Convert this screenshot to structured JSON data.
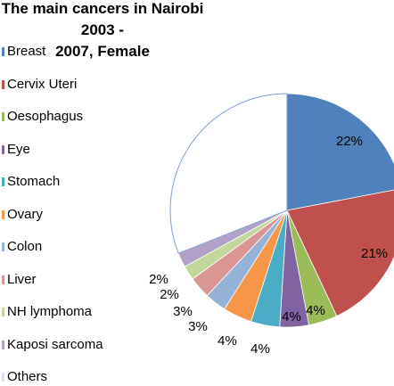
{
  "chart_data": {
    "type": "pie",
    "title": "The main cancers in Nairobi 2003 - 2007, Female",
    "title_lines": [
      "The main cancers in Nairobi 2003 -",
      "2007, Female"
    ],
    "legend_position": "left",
    "slices": [
      {
        "label": "Breast",
        "value": 22,
        "display": "22%",
        "color": "#4f81bd"
      },
      {
        "label": "Cervix Uteri",
        "value": 21,
        "display": "21%",
        "color": "#c0504d"
      },
      {
        "label": "Oesophagus",
        "value": 4,
        "display": "4%",
        "color": "#9bbb59"
      },
      {
        "label": "Eye",
        "value": 4,
        "display": "4%",
        "color": "#8064a2"
      },
      {
        "label": "Stomach",
        "value": 4,
        "display": "4%",
        "color": "#4bacc6"
      },
      {
        "label": "Ovary",
        "value": 4,
        "display": "4%",
        "color": "#f79646"
      },
      {
        "label": "Colon",
        "value": 3,
        "display": "3%",
        "color": "#95b3d7"
      },
      {
        "label": "Liver",
        "value": 3,
        "display": "3%",
        "color": "#da9694"
      },
      {
        "label": "NH lymphoma",
        "value": 2,
        "display": "2%",
        "color": "#c3d69b"
      },
      {
        "label": "Kaposi sarcoma",
        "value": 2,
        "display": "2%",
        "color": "#b2a1c7"
      },
      {
        "label": "Others",
        "value": 31,
        "display": "",
        "color": "#ffffff"
      }
    ]
  }
}
